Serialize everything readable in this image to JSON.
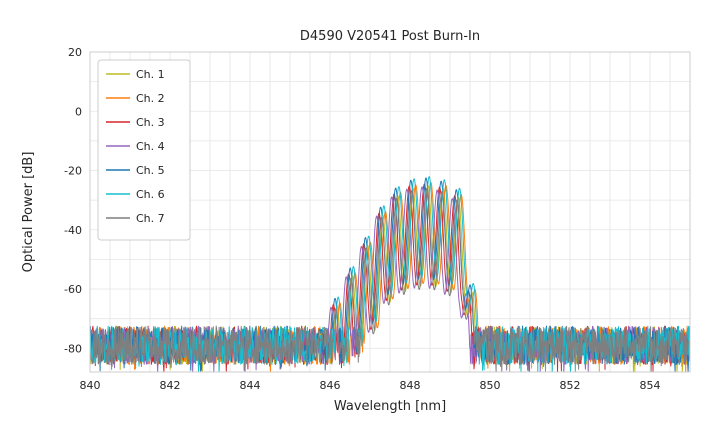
{
  "figure": {
    "title": "D4590 V20541 Post Burn-In",
    "xlabel": "Wavelength [nm]",
    "ylabel": "Optical Power [dB]"
  },
  "chart_data": {
    "type": "line",
    "title": "D4590 V20541 Post Burn-In",
    "xlabel": "Wavelength [nm]",
    "ylabel": "Optical Power [dB]",
    "xlim": [
      840,
      855
    ],
    "ylim": [
      -88,
      20
    ],
    "xticks": [
      840,
      842,
      844,
      846,
      848,
      850,
      852,
      854
    ],
    "yticks": [
      20,
      0,
      -20,
      -40,
      -60,
      -80
    ],
    "grid": true,
    "grid_minor_step_nm": 0.5,
    "grid_major_step_db": 10,
    "legend_position": "upper left",
    "description": "Optical spectra of 7 laser channels after burn-in: flat noise floor near -79 dB across 840-855 nm, multimode comb of peaks between ~846.5 and ~849.6 nm with maximum around -22 to -26 dB near 848.4 nm, sharp cutoff above ~849.6 nm.",
    "noise_floor_db": -79,
    "noise_peak_to_peak_db": 13,
    "mode_spacing_nm": 0.38,
    "approx_mode_peaks_nm": [
      846.15,
      846.55,
      846.95,
      847.3,
      847.7,
      848.05,
      848.45,
      848.8,
      849.2,
      849.55
    ],
    "approx_mode_peaks_db": [
      -68,
      -60,
      -50,
      -40,
      -32,
      -26,
      -23,
      -24,
      -28,
      -36
    ],
    "model": {
      "flat_top_halfwidth_nm": 1.0,
      "flat_top_curvature_db": 7,
      "left_slope_db_per_nm": 27,
      "right_cliff_db_per_nm": 170,
      "modulation_depth_db": 34
    },
    "series": [
      {
        "name": "Ch. 1",
        "color": "#bcbd22",
        "center_nm": 848.45,
        "peak_db": -25.0
      },
      {
        "name": "Ch. 2",
        "color": "#ff7f0e",
        "center_nm": 848.52,
        "peak_db": -24.0
      },
      {
        "name": "Ch. 3",
        "color": "#d62728",
        "center_nm": 848.36,
        "peak_db": -24.5
      },
      {
        "name": "Ch. 4",
        "color": "#9467bd",
        "center_nm": 848.3,
        "peak_db": -25.5
      },
      {
        "name": "Ch. 5",
        "color": "#1f77b4",
        "center_nm": 848.4,
        "peak_db": -22.5
      },
      {
        "name": "Ch. 6",
        "color": "#17becf",
        "center_nm": 848.48,
        "peak_db": -22.0
      },
      {
        "name": "Ch. 7",
        "color": "#7f7f7f",
        "center_nm": 848.42,
        "peak_db": -26.0
      }
    ],
    "plot_colors": {
      "background": "#ffffff",
      "grid": "#e5e5e5",
      "spine": "#cccccc",
      "text": "#262626"
    }
  }
}
